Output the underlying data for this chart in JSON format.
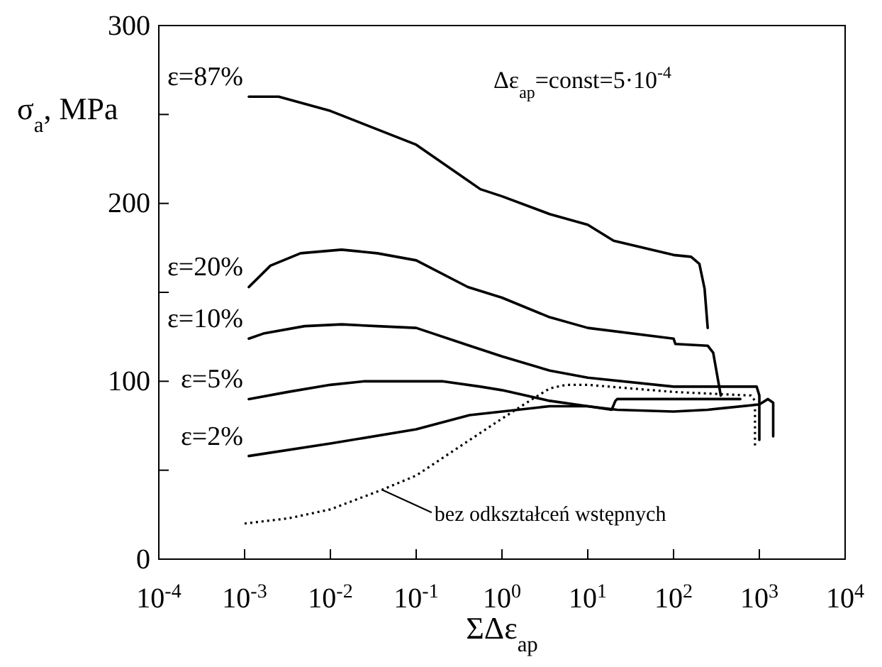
{
  "chart_data": {
    "type": "line",
    "xlabel": "ΣΔε$_{ap}$",
    "ylabel": "σ$_{a}$, MPa",
    "log": "x",
    "xlim": [
      0.0001,
      10000
    ],
    "ylim": [
      0,
      300
    ],
    "xticks": [
      {
        "value": 0.0001,
        "label": "10$^{-4}$"
      },
      {
        "value": 0.001,
        "label": "10$^{-3}$"
      },
      {
        "value": 0.01,
        "label": "10$^{-2}$"
      },
      {
        "value": 0.1,
        "label": "10$^{-1}$"
      },
      {
        "value": 1,
        "label": "10$^{0}$"
      },
      {
        "value": 10,
        "label": "10$^{1}$"
      },
      {
        "value": 100,
        "label": "10$^{2}$"
      },
      {
        "value": 1000,
        "label": "10$^{3}$"
      },
      {
        "value": 10000,
        "label": "10$^{4}$"
      }
    ],
    "yticks": [
      0,
      {
        "value": 50,
        "label": null
      },
      100,
      {
        "value": 150,
        "label": null
      },
      200,
      {
        "value": 250,
        "label": null
      },
      300
    ],
    "annotations": [
      "Δε$_{ap}$=const=5·10$^{-4}$",
      {
        "text": "bez odkształceń wstępnych",
        "x": 0.04,
        "y": 39
      }
    ],
    "series": [
      {
        "name": "ε=87%",
        "color": "#000000",
        "x": [
          0.00112,
          0.0025,
          0.01,
          0.1,
          0.56,
          1,
          3.6,
          10,
          20,
          100,
          160,
          200,
          230,
          250
        ],
        "values": [
          260,
          260,
          252,
          233,
          208,
          204,
          194,
          188,
          179,
          171,
          170,
          166,
          152,
          130
        ]
      },
      {
        "name": "ε=20%",
        "color": "#000000",
        "x": [
          0.00112,
          0.002,
          0.0045,
          0.0135,
          0.035,
          0.1,
          0.4,
          1,
          3.6,
          10,
          100,
          105,
          250,
          290,
          355
        ],
        "values": [
          153,
          165,
          172,
          174,
          172,
          168,
          153,
          147,
          136,
          130,
          124,
          121,
          120,
          116,
          92
        ]
      },
      {
        "name": "ε=10%",
        "color": "#000000",
        "x": [
          0.00112,
          0.0017,
          0.005,
          0.0135,
          0.035,
          0.1,
          0.42,
          1,
          3.6,
          10,
          100,
          930,
          1000,
          1000
        ],
        "values": [
          124,
          127,
          131,
          132,
          131,
          130,
          120,
          114,
          106,
          102,
          97,
          97,
          92,
          67
        ]
      },
      {
        "name": "ε=5%",
        "color": "#000000",
        "x": [
          0.00112,
          0.0032,
          0.01,
          0.025,
          0.14,
          0.2,
          0.56,
          1,
          3.6,
          10,
          19,
          21,
          22,
          600
        ],
        "values": [
          90,
          94,
          98,
          100,
          100,
          100,
          97,
          95,
          89,
          86,
          84,
          89,
          90,
          90
        ]
      },
      {
        "name": "ε=2%",
        "color": "#000000",
        "x": [
          0.00112,
          0.01,
          0.1,
          0.42,
          1,
          3.6,
          10,
          22,
          100,
          250,
          1000,
          1260,
          1450,
          1450
        ],
        "values": [
          58,
          65,
          73,
          81,
          83,
          86,
          86,
          84,
          83,
          84,
          87,
          90,
          88,
          69
        ]
      },
      {
        "color": "#000000",
        "line_style": "dotted",
        "x": [
          0.001,
          0.0033,
          0.01,
          0.04,
          0.1,
          0.42,
          1,
          2.1,
          3.6,
          5.6,
          10,
          100,
          800,
          890,
          890
        ],
        "values": [
          20,
          23,
          28,
          39,
          47,
          67,
          79,
          89,
          96,
          98,
          98,
          94,
          92,
          89,
          62
        ]
      }
    ]
  }
}
